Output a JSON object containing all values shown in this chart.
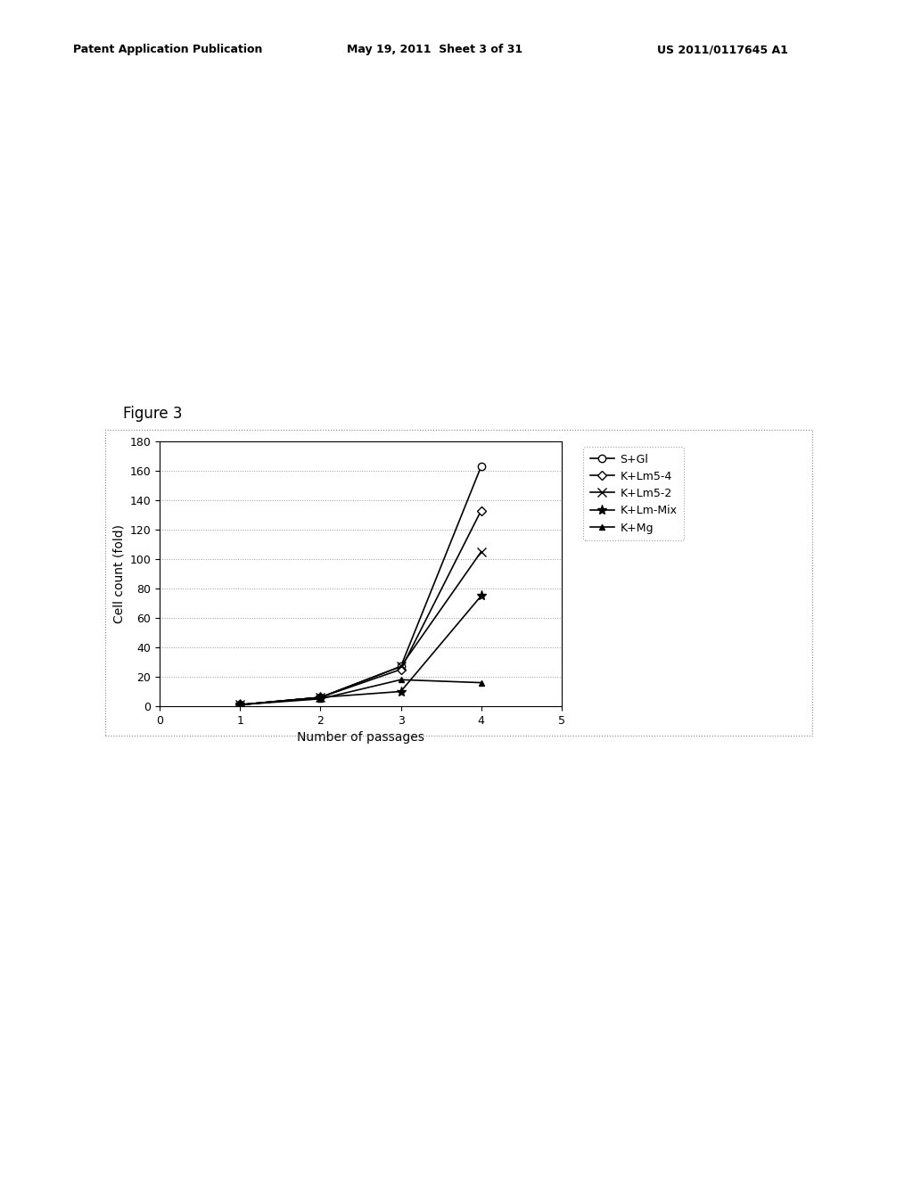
{
  "header_left": "Patent Application Publication",
  "header_mid": "May 19, 2011  Sheet 3 of 31",
  "header_right": "US 2011/0117645 A1",
  "figure_label": "Figure 3",
  "xlabel": "Number of passages",
  "ylabel": "Cell count (fold)",
  "xlim": [
    0,
    5
  ],
  "ylim": [
    0,
    180
  ],
  "xticks": [
    0,
    1,
    2,
    3,
    4,
    5
  ],
  "yticks": [
    0,
    20,
    40,
    60,
    80,
    100,
    120,
    140,
    160,
    180
  ],
  "series": [
    {
      "label": "S+Gl",
      "x": [
        1,
        2,
        3,
        4
      ],
      "y": [
        1,
        6,
        27,
        163
      ],
      "color": "#000000",
      "marker": "o",
      "markersize": 6,
      "markerfacecolor": "white",
      "linewidth": 1.2,
      "linestyle": "-"
    },
    {
      "label": "K+Lm5-4",
      "x": [
        1,
        2,
        3,
        4
      ],
      "y": [
        1,
        6,
        25,
        133
      ],
      "color": "#000000",
      "marker": "D",
      "markersize": 5,
      "markerfacecolor": "white",
      "linewidth": 1.2,
      "linestyle": "-"
    },
    {
      "label": "K+Lm5-2",
      "x": [
        1,
        2,
        3,
        4
      ],
      "y": [
        1,
        6,
        27,
        105
      ],
      "color": "#000000",
      "marker": "x",
      "markersize": 7,
      "markerfacecolor": "#000000",
      "linewidth": 1.2,
      "linestyle": "-"
    },
    {
      "label": "K+Lm-Mix",
      "x": [
        1,
        2,
        3,
        4
      ],
      "y": [
        1,
        6,
        10,
        75
      ],
      "color": "#000000",
      "marker": "*",
      "markersize": 8,
      "markerfacecolor": "#000000",
      "linewidth": 1.2,
      "linestyle": "-"
    },
    {
      "label": "K+Mg",
      "x": [
        1,
        2,
        3,
        4
      ],
      "y": [
        1,
        5,
        18,
        16
      ],
      "color": "#000000",
      "marker": "^",
      "markersize": 5,
      "markerfacecolor": "#000000",
      "linewidth": 1.2,
      "linestyle": "-"
    }
  ],
  "background_color": "#ffffff",
  "grid_color": "#999999",
  "font_color": "#000000",
  "header_fontsize": 9,
  "label_fontsize": 10,
  "tick_fontsize": 9,
  "legend_fontsize": 9,
  "figure_label_fontsize": 12
}
